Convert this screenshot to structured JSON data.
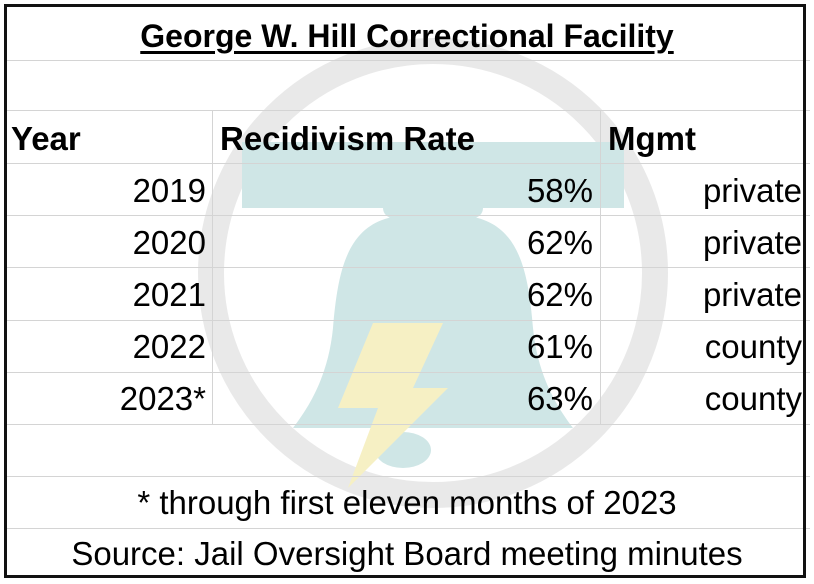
{
  "title": "George W. Hill Correctional Facility",
  "headers": {
    "year": "Year",
    "rate": "Recidivism Rate",
    "mgmt": "Mgmt"
  },
  "rows": [
    {
      "year": "2019",
      "rate": "58%",
      "mgmt": "private"
    },
    {
      "year": "2020",
      "rate": "62%",
      "mgmt": "private"
    },
    {
      "year": "2021",
      "rate": "62%",
      "mgmt": "private"
    },
    {
      "year": "2022",
      "rate": "61%",
      "mgmt": "county"
    },
    {
      "year": "2023*",
      "rate": "63%",
      "mgmt": "county"
    }
  ],
  "footnote": "* through first eleven months of 2023",
  "source": "Source: Jail Oversight Board meeting minutes",
  "watermark": {
    "icon": "liberty-bell-lightning-icon",
    "colors": {
      "circle": "#e9e9e9",
      "bell": "#cfe6e6",
      "bolt": "#f6f0c4"
    }
  }
}
